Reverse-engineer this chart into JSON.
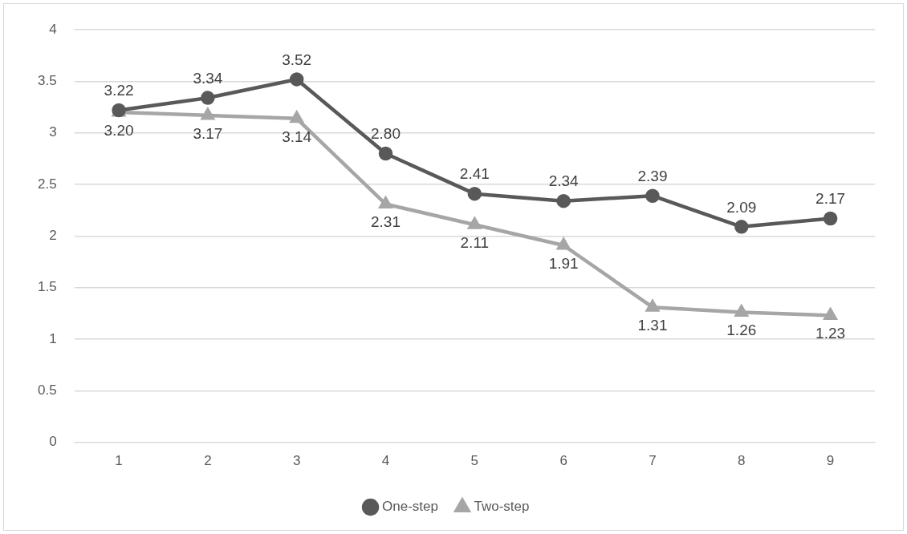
{
  "chart_data": {
    "type": "line",
    "categories": [
      "1",
      "2",
      "3",
      "4",
      "5",
      "6",
      "7",
      "8",
      "9"
    ],
    "series": [
      {
        "name": "One-step",
        "color": "#595959",
        "marker": "circle",
        "values": [
          3.22,
          3.34,
          3.52,
          2.8,
          2.41,
          2.34,
          2.39,
          2.09,
          2.17
        ],
        "value_labels": [
          "3.22",
          "3.34",
          "3.52",
          "2.80",
          "2.41",
          "2.34",
          "2.39",
          "2.09",
          "2.17"
        ]
      },
      {
        "name": "Two-step",
        "color": "#a6a6a6",
        "marker": "triangle",
        "values": [
          3.2,
          3.17,
          3.14,
          2.31,
          2.11,
          1.91,
          1.31,
          1.26,
          1.23
        ],
        "value_labels": [
          "3.20",
          "3.17",
          "3.14",
          "2.31",
          "2.11",
          "1.91",
          "1.31",
          "1.26",
          "1.23"
        ]
      }
    ],
    "ylim": [
      0,
      4
    ],
    "yticks": [
      0,
      0.5,
      1,
      1.5,
      2,
      2.5,
      3,
      3.5,
      4
    ],
    "grid": "y",
    "legend": "bottom",
    "line_style": "solid"
  }
}
